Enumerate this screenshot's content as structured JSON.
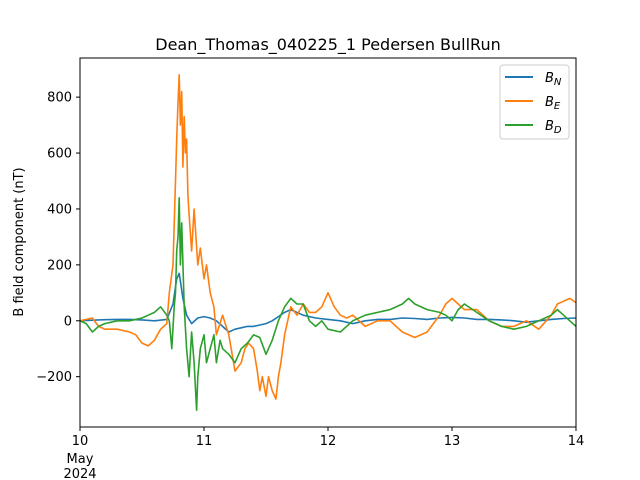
{
  "chart_data": {
    "type": "line",
    "title": "Dean_Thomas_040225_1 Pedersen BullRun",
    "xlabel": "",
    "ylabel": "B field component (nT)",
    "x_unit": "day of May 2024",
    "x_ticks": [
      {
        "value": 10,
        "label": "10",
        "sublabels": [
          "May",
          "2024"
        ]
      },
      {
        "value": 11,
        "label": "11"
      },
      {
        "value": 12,
        "label": "12"
      },
      {
        "value": 13,
        "label": "13"
      },
      {
        "value": 14,
        "label": "14"
      }
    ],
    "xlim": [
      10,
      14
    ],
    "y_ticks": [
      -200,
      0,
      200,
      400,
      600,
      800
    ],
    "y_tick_labels": [
      "−200",
      "0",
      "200",
      "400",
      "600",
      "800"
    ],
    "ylim": [
      -380,
      940
    ],
    "grid": false,
    "legend_position": "top-right",
    "series": [
      {
        "name": "B_N",
        "legend_base": "B",
        "legend_sub": "N",
        "color": "#1f77b4",
        "x": [
          10.0,
          10.1,
          10.2,
          10.3,
          10.4,
          10.5,
          10.6,
          10.7,
          10.75,
          10.78,
          10.8,
          10.83,
          10.86,
          10.9,
          10.95,
          11.0,
          11.05,
          11.1,
          11.15,
          11.2,
          11.25,
          11.3,
          11.35,
          11.4,
          11.45,
          11.5,
          11.55,
          11.6,
          11.65,
          11.7,
          11.8,
          11.9,
          12.0,
          12.1,
          12.2,
          12.3,
          12.4,
          12.5,
          12.6,
          12.7,
          12.8,
          12.9,
          13.0,
          13.1,
          13.2,
          13.3,
          13.4,
          13.5,
          13.6,
          13.7,
          13.8,
          13.9,
          14.0
        ],
        "y": [
          0,
          2,
          4,
          5,
          5,
          3,
          0,
          5,
          60,
          150,
          170,
          80,
          20,
          -10,
          10,
          15,
          10,
          0,
          -20,
          -40,
          -30,
          -25,
          -20,
          -20,
          -15,
          -10,
          0,
          15,
          30,
          40,
          20,
          10,
          5,
          0,
          -10,
          0,
          5,
          5,
          10,
          8,
          5,
          10,
          12,
          10,
          5,
          5,
          3,
          0,
          -5,
          0,
          5,
          8,
          10
        ]
      },
      {
        "name": "B_E",
        "legend_base": "B",
        "legend_sub": "E",
        "color": "#ff7f0e",
        "x": [
          10.0,
          10.05,
          10.1,
          10.15,
          10.2,
          10.3,
          10.4,
          10.45,
          10.5,
          10.55,
          10.6,
          10.65,
          10.7,
          10.72,
          10.75,
          10.77,
          10.78,
          10.79,
          10.8,
          10.81,
          10.82,
          10.83,
          10.84,
          10.85,
          10.86,
          10.87,
          10.88,
          10.9,
          10.92,
          10.95,
          10.97,
          11.0,
          11.02,
          11.05,
          11.08,
          11.1,
          11.15,
          11.2,
          11.25,
          11.3,
          11.33,
          11.36,
          11.4,
          11.43,
          11.45,
          11.47,
          11.5,
          11.52,
          11.55,
          11.58,
          11.6,
          11.62,
          11.65,
          11.7,
          11.75,
          11.8,
          11.85,
          11.9,
          11.95,
          12.0,
          12.05,
          12.1,
          12.15,
          12.2,
          12.3,
          12.4,
          12.5,
          12.6,
          12.7,
          12.8,
          12.9,
          12.95,
          13.0,
          13.1,
          13.2,
          13.3,
          13.4,
          13.5,
          13.6,
          13.7,
          13.8,
          13.85,
          13.9,
          13.95,
          14.0
        ],
        "y": [
          0,
          5,
          10,
          -20,
          -30,
          -30,
          -40,
          -50,
          -80,
          -90,
          -70,
          -30,
          -10,
          100,
          200,
          500,
          650,
          780,
          880,
          700,
          820,
          550,
          730,
          600,
          650,
          450,
          380,
          250,
          400,
          200,
          260,
          150,
          200,
          100,
          50,
          -50,
          20,
          -50,
          -180,
          -150,
          -100,
          -80,
          -100,
          -180,
          -250,
          -200,
          -270,
          -200,
          -250,
          -280,
          -200,
          -150,
          -50,
          50,
          20,
          60,
          30,
          30,
          50,
          100,
          50,
          20,
          10,
          20,
          -20,
          0,
          0,
          -40,
          -60,
          -40,
          20,
          60,
          80,
          40,
          40,
          0,
          -20,
          -20,
          0,
          -30,
          20,
          60,
          70,
          80,
          65
        ]
      },
      {
        "name": "B_D",
        "legend_base": "B",
        "legend_sub": "D",
        "color": "#2ca02c",
        "x": [
          10.0,
          10.05,
          10.1,
          10.15,
          10.2,
          10.3,
          10.4,
          10.5,
          10.55,
          10.6,
          10.65,
          10.7,
          10.72,
          10.74,
          10.76,
          10.77,
          10.78,
          10.79,
          10.8,
          10.81,
          10.82,
          10.84,
          10.86,
          10.88,
          10.9,
          10.92,
          10.94,
          10.95,
          10.97,
          11.0,
          11.02,
          11.05,
          11.08,
          11.1,
          11.13,
          11.15,
          11.2,
          11.25,
          11.3,
          11.35,
          11.4,
          11.45,
          11.5,
          11.55,
          11.6,
          11.65,
          11.7,
          11.75,
          11.8,
          11.85,
          11.9,
          11.95,
          12.0,
          12.1,
          12.2,
          12.3,
          12.4,
          12.5,
          12.6,
          12.65,
          12.7,
          12.8,
          12.9,
          12.95,
          13.0,
          13.05,
          13.1,
          13.2,
          13.3,
          13.4,
          13.5,
          13.6,
          13.7,
          13.8,
          13.85,
          13.9,
          13.95,
          14.0
        ],
        "y": [
          0,
          -10,
          -40,
          -20,
          -10,
          0,
          0,
          10,
          20,
          30,
          50,
          20,
          0,
          -100,
          50,
          100,
          250,
          300,
          440,
          200,
          350,
          50,
          -100,
          -200,
          -40,
          -150,
          -320,
          -200,
          -100,
          -50,
          -150,
          -100,
          -50,
          -150,
          -70,
          -100,
          -120,
          -150,
          -100,
          -80,
          -50,
          -60,
          -120,
          -70,
          0,
          50,
          80,
          60,
          60,
          0,
          -20,
          0,
          -30,
          -40,
          0,
          20,
          30,
          40,
          60,
          80,
          60,
          40,
          30,
          20,
          0,
          40,
          60,
          30,
          0,
          -20,
          -30,
          -20,
          0,
          20,
          40,
          20,
          0,
          -20
        ]
      }
    ]
  }
}
